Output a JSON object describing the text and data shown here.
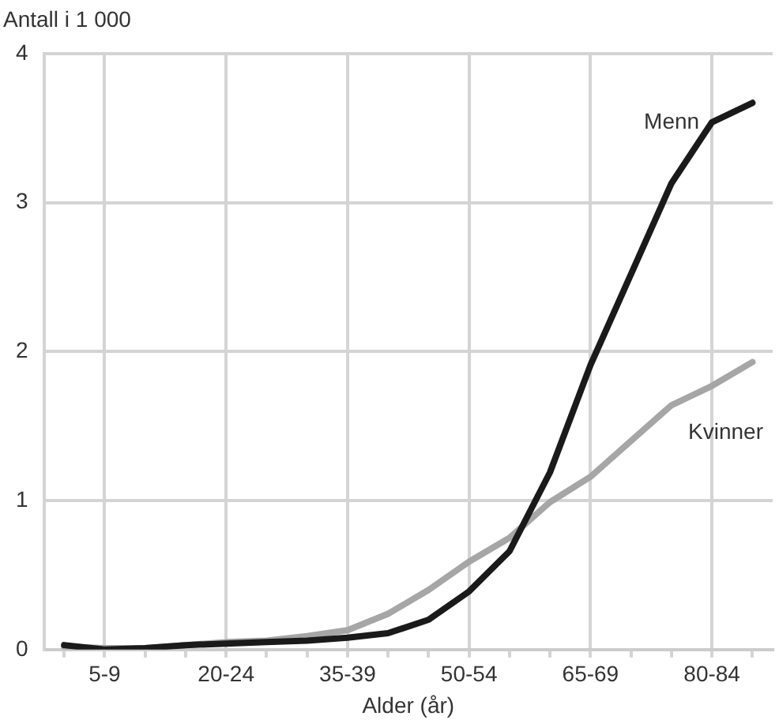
{
  "chart_data": {
    "type": "line",
    "ylabel": "Antall i 1 000",
    "xlabel": "Alder (år)",
    "categories": [
      null,
      "5-9",
      null,
      null,
      "20-24",
      null,
      null,
      "35-39",
      null,
      null,
      "50-54",
      null,
      null,
      "65-69",
      null,
      null,
      "80-84",
      null
    ],
    "series": [
      {
        "name": "Menn",
        "color": "#1a1a1a",
        "values": [
          0.03,
          0.0,
          0.01,
          0.03,
          0.04,
          0.05,
          0.06,
          0.08,
          0.11,
          0.2,
          0.39,
          0.66,
          1.19,
          1.91,
          2.52,
          3.13,
          3.54,
          3.67
        ]
      },
      {
        "name": "Kvinner",
        "color": "#a6a6a6",
        "values": [
          0.02,
          0.01,
          0.01,
          0.03,
          0.05,
          0.06,
          0.09,
          0.13,
          0.24,
          0.4,
          0.59,
          0.75,
          0.99,
          1.16,
          1.4,
          1.64,
          1.77,
          1.93
        ]
      }
    ],
    "ylim": [
      0,
      4
    ],
    "yticks": [
      0,
      1,
      2,
      3,
      4
    ],
    "grid": true,
    "legend": false,
    "marker": "none",
    "line_style": "solid"
  }
}
